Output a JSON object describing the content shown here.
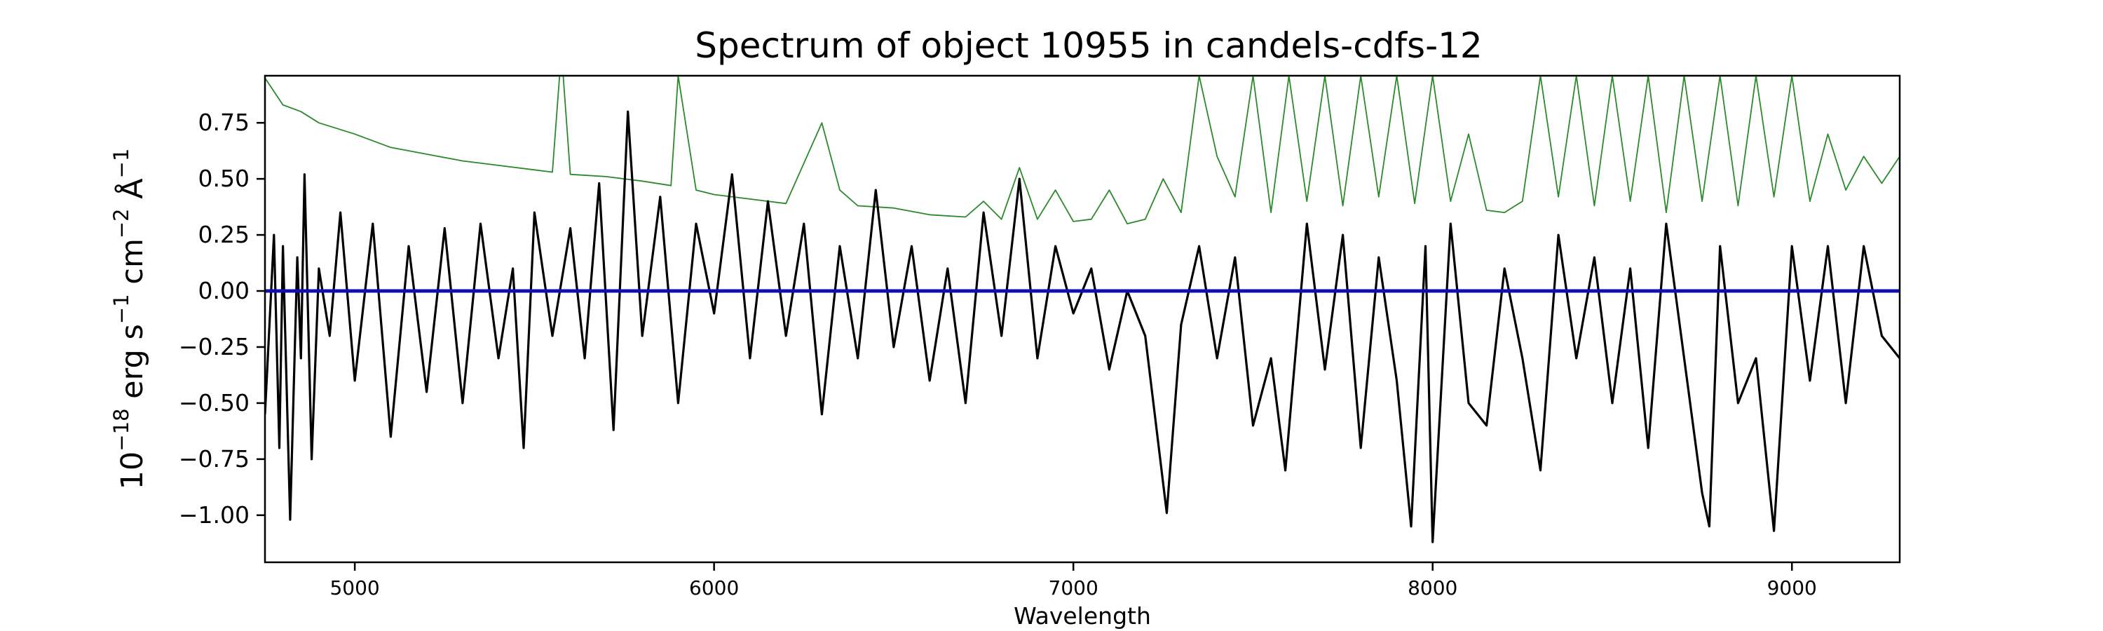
{
  "chart_data": {
    "type": "line",
    "title": "Spectrum of object 10955 in candels-cdfs-12",
    "xlabel": "Wavelength",
    "ylabel": {
      "parts": [
        "10",
        "−18",
        " erg s",
        "−1",
        " cm",
        "−2",
        " Å",
        "−1"
      ]
    },
    "xlim": [
      4750,
      9300
    ],
    "ylim": [
      -1.21,
      0.96
    ],
    "x_ticks": [
      5000,
      6000,
      7000,
      8000,
      9000
    ],
    "x_tick_labels": [
      "5000",
      "6000",
      "7000",
      "8000",
      "9000"
    ],
    "y_ticks": [
      0.75,
      0.5,
      0.25,
      0.0,
      -0.25,
      -0.5,
      -0.75,
      -1.0
    ],
    "y_tick_labels": [
      "0.75",
      "0.50",
      "0.25",
      "0.00",
      "−0.25",
      "−0.50",
      "−0.75",
      "−1.00"
    ],
    "grid": false,
    "legend": "none",
    "colors": {
      "flux": "#000000",
      "error": "#2a8a2a",
      "model": "#1010b0"
    },
    "series": [
      {
        "role": "flux",
        "x": [
          4750,
          4775,
          4790,
          4800,
          4820,
          4840,
          4850,
          4860,
          4880,
          4900,
          4930,
          4960,
          5000,
          5050,
          5100,
          5150,
          5200,
          5250,
          5300,
          5350,
          5400,
          5440,
          5470,
          5500,
          5550,
          5600,
          5640,
          5680,
          5720,
          5760,
          5800,
          5850,
          5900,
          5950,
          6000,
          6050,
          6100,
          6150,
          6200,
          6250,
          6300,
          6350,
          6400,
          6450,
          6500,
          6550,
          6600,
          6650,
          6700,
          6750,
          6800,
          6850,
          6900,
          6950,
          7000,
          7050,
          7100,
          7150,
          7200,
          7260,
          7300,
          7350,
          7400,
          7450,
          7500,
          7550,
          7590,
          7650,
          7700,
          7750,
          7800,
          7850,
          7900,
          7940,
          7980,
          8000,
          8050,
          8100,
          8150,
          8200,
          8250,
          8300,
          8350,
          8400,
          8450,
          8500,
          8550,
          8600,
          8650,
          8700,
          8750,
          8770,
          8800,
          8850,
          8900,
          8950,
          9000,
          9050,
          9100,
          9150,
          9200,
          9250,
          9300
        ],
        "y": [
          -0.55,
          0.25,
          -0.7,
          0.2,
          -1.02,
          0.15,
          -0.3,
          0.52,
          -0.75,
          0.1,
          -0.2,
          0.35,
          -0.4,
          0.3,
          -0.65,
          0.2,
          -0.45,
          0.28,
          -0.5,
          0.3,
          -0.3,
          0.1,
          -0.7,
          0.35,
          -0.2,
          0.28,
          -0.3,
          0.48,
          -0.62,
          0.8,
          -0.2,
          0.42,
          -0.5,
          0.3,
          -0.1,
          0.52,
          -0.3,
          0.4,
          -0.2,
          0.3,
          -0.55,
          0.2,
          -0.3,
          0.45,
          -0.25,
          0.2,
          -0.4,
          0.1,
          -0.5,
          0.35,
          -0.2,
          0.5,
          -0.3,
          0.2,
          -0.1,
          0.1,
          -0.35,
          0.0,
          -0.2,
          -0.99,
          -0.15,
          0.2,
          -0.3,
          0.15,
          -0.6,
          -0.3,
          -0.8,
          0.3,
          -0.35,
          0.25,
          -0.7,
          0.15,
          -0.4,
          -1.05,
          0.2,
          -1.12,
          0.3,
          -0.5,
          -0.6,
          0.1,
          -0.3,
          -0.8,
          0.25,
          -0.3,
          0.15,
          -0.5,
          0.1,
          -0.7,
          0.3,
          -0.3,
          -0.9,
          -1.05,
          0.2,
          -0.5,
          -0.3,
          -1.07,
          0.2,
          -0.4,
          0.2,
          -0.5,
          0.2,
          -0.2,
          -0.3
        ]
      },
      {
        "role": "error",
        "x": [
          4750,
          4800,
          4850,
          4900,
          5000,
          5100,
          5200,
          5300,
          5400,
          5500,
          5550,
          5570,
          5580,
          5600,
          5700,
          5800,
          5880,
          5900,
          5950,
          6000,
          6100,
          6200,
          6300,
          6350,
          6400,
          6500,
          6600,
          6700,
          6750,
          6800,
          6850,
          6900,
          6950,
          7000,
          7050,
          7100,
          7150,
          7200,
          7250,
          7300,
          7350,
          7400,
          7450,
          7500,
          7550,
          7600,
          7650,
          7700,
          7750,
          7800,
          7850,
          7900,
          7950,
          8000,
          8050,
          8100,
          8150,
          8200,
          8250,
          8300,
          8350,
          8400,
          8450,
          8500,
          8550,
          8600,
          8650,
          8700,
          8750,
          8800,
          8850,
          8900,
          8950,
          9000,
          9050,
          9100,
          9150,
          9200,
          9250,
          9300
        ],
        "y": [
          0.95,
          0.83,
          0.8,
          0.75,
          0.7,
          0.64,
          0.61,
          0.58,
          0.56,
          0.54,
          0.53,
          0.96,
          0.96,
          0.52,
          0.51,
          0.49,
          0.47,
          0.96,
          0.45,
          0.43,
          0.41,
          0.39,
          0.75,
          0.45,
          0.38,
          0.37,
          0.34,
          0.33,
          0.4,
          0.32,
          0.55,
          0.32,
          0.45,
          0.31,
          0.32,
          0.45,
          0.3,
          0.32,
          0.5,
          0.35,
          0.96,
          0.6,
          0.42,
          0.96,
          0.35,
          0.96,
          0.4,
          0.96,
          0.38,
          0.96,
          0.42,
          0.96,
          0.39,
          0.96,
          0.4,
          0.7,
          0.36,
          0.35,
          0.4,
          0.96,
          0.42,
          0.96,
          0.38,
          0.96,
          0.4,
          0.96,
          0.35,
          0.96,
          0.4,
          0.96,
          0.38,
          0.96,
          0.42,
          0.96,
          0.4,
          0.7,
          0.45,
          0.6,
          0.48,
          0.6
        ]
      },
      {
        "role": "model",
        "x": [
          4750,
          9300
        ],
        "y": [
          0.0,
          0.0
        ]
      }
    ]
  }
}
